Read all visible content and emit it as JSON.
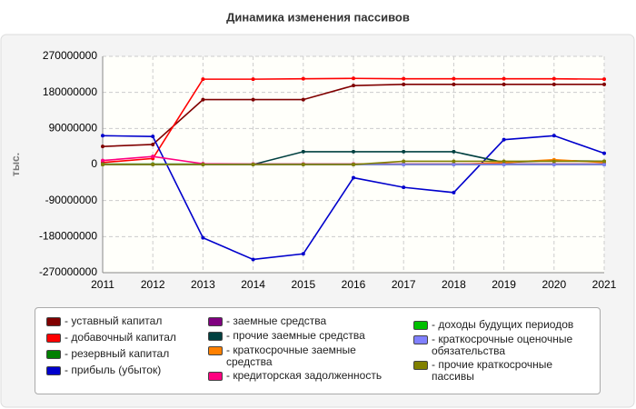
{
  "chart_data": {
    "type": "line",
    "title": "Динамика изменения пассивов",
    "y_label": "тыс.",
    "x": [
      2011,
      2012,
      2013,
      2014,
      2015,
      2016,
      2017,
      2018,
      2019,
      2020,
      2021
    ],
    "xlim": [
      2011,
      2021
    ],
    "xticks": [
      2011,
      2012,
      2013,
      2014,
      2015,
      2016,
      2017,
      2018,
      2019,
      2020,
      2021
    ],
    "ylim": [
      -270000000,
      270000000
    ],
    "yticks": [
      -270000000,
      -180000000,
      -90000000,
      0,
      90000000,
      180000000,
      270000000
    ],
    "grid": true,
    "series": [
      {
        "name": "уставный капитал",
        "color": "#800000",
        "values": [
          45000000,
          50000000,
          162000000,
          162000000,
          162000000,
          197000000,
          200000000,
          200000000,
          200000000,
          200000000,
          200000000
        ]
      },
      {
        "name": "добавочный капитал",
        "color": "#ff0000",
        "values": [
          5000000,
          15000000,
          213000000,
          213000000,
          214000000,
          215000000,
          214000000,
          214000000,
          214000000,
          214000000,
          213000000
        ]
      },
      {
        "name": "резервный капитал",
        "color": "#008000",
        "values": [
          1000000,
          1000000,
          1000000,
          1000000,
          1000000,
          1000000,
          1000000,
          1000000,
          1000000,
          1000000,
          1000000
        ]
      },
      {
        "name": "прибыль (убыток)",
        "color": "#0000cc",
        "values": [
          72000000,
          70000000,
          -183000000,
          -237000000,
          -223000000,
          -33000000,
          -57000000,
          -70000000,
          62000000,
          72000000,
          28000000
        ]
      },
      {
        "name": "заемные средства",
        "color": "#800080",
        "values": [
          0,
          0,
          0,
          0,
          0,
          0,
          0,
          0,
          0,
          0,
          0
        ]
      },
      {
        "name": "прочие заемные средства",
        "color": "#004040",
        "values": [
          0,
          0,
          0,
          0,
          32000000,
          32000000,
          32000000,
          32000000,
          5000000,
          10000000,
          8000000
        ]
      },
      {
        "name": "краткосрочные заемные средства",
        "color": "#ff8000",
        "values": [
          0,
          0,
          0,
          0,
          0,
          0,
          0,
          0,
          5000000,
          12000000,
          5000000
        ]
      },
      {
        "name": "кредиторская задолженность",
        "color": "#ff0080",
        "values": [
          10000000,
          20000000,
          2000000,
          1000000,
          1000000,
          1000000,
          1000000,
          1000000,
          1000000,
          1000000,
          1000000
        ]
      },
      {
        "name": "доходы будущих периодов",
        "color": "#00c000",
        "values": [
          0,
          0,
          0,
          0,
          0,
          0,
          0,
          0,
          0,
          0,
          0
        ]
      },
      {
        "name": "краткосрочные оценочные обязательства",
        "color": "#8080ff",
        "values": [
          0,
          0,
          0,
          0,
          0,
          0,
          0,
          0,
          0,
          0,
          0
        ]
      },
      {
        "name": "прочие краткосрочные пассивы",
        "color": "#808000",
        "values": [
          0,
          0,
          0,
          0,
          0,
          0,
          8000000,
          8000000,
          8000000,
          8000000,
          8000000
        ]
      }
    ]
  }
}
